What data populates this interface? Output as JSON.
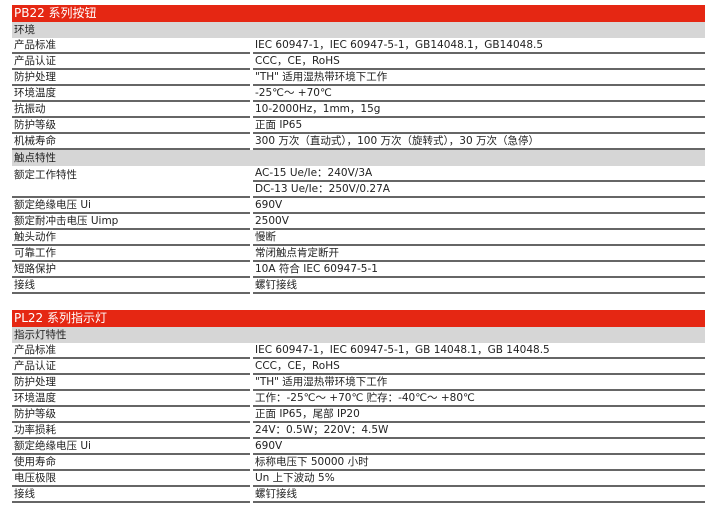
{
  "pb22": {
    "title": "PB22 系列按钮",
    "sections": [
      {
        "heading": "环境",
        "rows": [
          {
            "label": "产品标准",
            "values": [
              "IEC 60947-1，IEC 60947-5-1，GB14048.1，GB14048.5"
            ]
          },
          {
            "label": "产品认证",
            "values": [
              "CCC，CE，RoHS"
            ]
          },
          {
            "label": "防护处理",
            "values": [
              "\"TH\" 适用湿热带环境下工作"
            ]
          },
          {
            "label": "环境温度",
            "values": [
              "-25℃～ +70℃"
            ]
          },
          {
            "label": "抗振动",
            "values": [
              "10-2000Hz，1mm，15g"
            ]
          },
          {
            "label": "防护等级",
            "values": [
              "正面 IP65"
            ]
          },
          {
            "label": "机械寿命",
            "values": [
              "300 万次（直动式），100 万次（旋转式），30 万次（急停）"
            ]
          }
        ]
      },
      {
        "heading": "触点特性",
        "rows": [
          {
            "label": "额定工作特性",
            "values": [
              "AC-15 Ue/Ie：240V/3A",
              "DC-13 Ue/Ie：250V/0.27A"
            ]
          },
          {
            "label": "额定绝缘电压 Ui",
            "values": [
              "690V"
            ]
          },
          {
            "label": "额定耐冲击电压 Uimp",
            "values": [
              "2500V"
            ]
          },
          {
            "label": "触头动作",
            "values": [
              "慢断"
            ]
          },
          {
            "label": "可靠工作",
            "values": [
              "常闭触点肯定断开"
            ]
          },
          {
            "label": "短路保护",
            "values": [
              "10A 符合 IEC 60947-5-1"
            ]
          },
          {
            "label": "接线",
            "values": [
              "螺钉接线"
            ]
          }
        ]
      }
    ]
  },
  "pl22": {
    "title": "PL22 系列指示灯",
    "sections": [
      {
        "heading": "指示灯特性",
        "rows": [
          {
            "label": "产品标准",
            "values": [
              "IEC 60947-1，IEC 60947-5-1，GB 14048.1，GB 14048.5"
            ]
          },
          {
            "label": "产品认证",
            "values": [
              "CCC，CE，RoHS"
            ]
          },
          {
            "label": "防护处理",
            "values": [
              "\"TH\" 适用湿热带环境下工作"
            ]
          },
          {
            "label": "环境温度",
            "values": [
              "工作：-25℃～ +70℃   贮存：-40℃～ +80℃"
            ]
          },
          {
            "label": "防护等级",
            "values": [
              "正面 IP65，尾部 IP20"
            ]
          },
          {
            "label": "功率损耗",
            "values": [
              "24V：0.5W；220V：4.5W"
            ]
          },
          {
            "label": "额定绝缘电压 Ui",
            "values": [
              "690V"
            ]
          },
          {
            "label": "使用寿命",
            "values": [
              "标称电压下 50000 小时"
            ]
          },
          {
            "label": "电压极限",
            "values": [
              "Un 上下波动 5%"
            ]
          },
          {
            "label": "接线",
            "values": [
              "螺钉接线"
            ]
          }
        ]
      }
    ]
  },
  "colors": {
    "title_bg": "#e52713",
    "section_bg": "#d6d6d6",
    "rule": "#666666"
  }
}
